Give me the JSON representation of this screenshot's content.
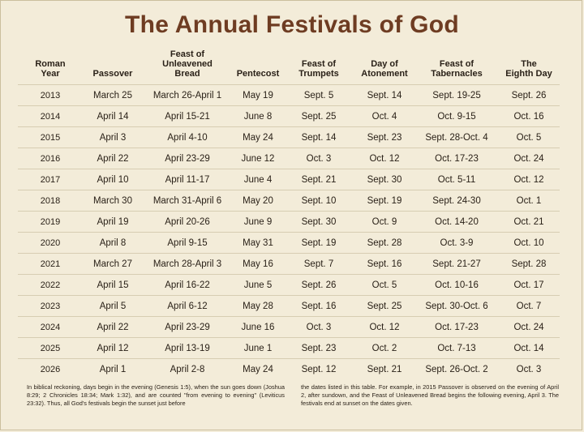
{
  "title": "The Annual Festivals of God",
  "columns": [
    "Roman\nYear",
    "Passover",
    "Feast of\nUnleavened\nBread",
    "Pentecost",
    "Feast of\nTrumpets",
    "Day of\nAtonement",
    "Feast of\nTabernacles",
    "The\nEighth Day"
  ],
  "rows": [
    [
      "2013",
      "March 25",
      "March 26-April 1",
      "May 19",
      "Sept. 5",
      "Sept. 14",
      "Sept. 19-25",
      "Sept. 26"
    ],
    [
      "2014",
      "April 14",
      "April 15-21",
      "June 8",
      "Sept. 25",
      "Oct. 4",
      "Oct. 9-15",
      "Oct. 16"
    ],
    [
      "2015",
      "April 3",
      "April 4-10",
      "May 24",
      "Sept. 14",
      "Sept. 23",
      "Sept. 28-Oct. 4",
      "Oct. 5"
    ],
    [
      "2016",
      "April 22",
      "April 23-29",
      "June 12",
      "Oct. 3",
      "Oct. 12",
      "Oct. 17-23",
      "Oct. 24"
    ],
    [
      "2017",
      "April 10",
      "April 11-17",
      "June 4",
      "Sept. 21",
      "Sept. 30",
      "Oct. 5-11",
      "Oct. 12"
    ],
    [
      "2018",
      "March 30",
      "March 31-April 6",
      "May 20",
      "Sept. 10",
      "Sept. 19",
      "Sept. 24-30",
      "Oct. 1"
    ],
    [
      "2019",
      "April 19",
      "April 20-26",
      "June 9",
      "Sept. 30",
      "Oct. 9",
      "Oct. 14-20",
      "Oct. 21"
    ],
    [
      "2020",
      "April 8",
      "April 9-15",
      "May 31",
      "Sept. 19",
      "Sept. 28",
      "Oct. 3-9",
      "Oct. 10"
    ],
    [
      "2021",
      "March 27",
      "March 28-April 3",
      "May 16",
      "Sept. 7",
      "Sept. 16",
      "Sept. 21-27",
      "Sept. 28"
    ],
    [
      "2022",
      "April 15",
      "April 16-22",
      "June 5",
      "Sept. 26",
      "Oct. 5",
      "Oct. 10-16",
      "Oct. 17"
    ],
    [
      "2023",
      "April 5",
      "April 6-12",
      "May 28",
      "Sept. 16",
      "Sept. 25",
      "Sept. 30-Oct. 6",
      "Oct. 7"
    ],
    [
      "2024",
      "April 22",
      "April 23-29",
      "June 16",
      "Oct. 3",
      "Oct. 12",
      "Oct. 17-23",
      "Oct. 24"
    ],
    [
      "2025",
      "April 12",
      "April 13-19",
      "June 1",
      "Sept. 23",
      "Oct. 2",
      "Oct. 7-13",
      "Oct. 14"
    ],
    [
      "2026",
      "April 1",
      "April 2-8",
      "May 24",
      "Sept. 12",
      "Sept. 21",
      "Sept. 26-Oct. 2",
      "Oct. 3"
    ]
  ],
  "footer": {
    "left": "In biblical reckoning, days begin in the evening (Genesis 1:5), when the sun goes down (Joshua 8:29; 2 Chronicles 18:34; Mark 1:32), and are counted \"from evening to evening\" (Leviticus 23:32). Thus, all God's festivals begin the sunset just before",
    "right": "the dates listed in this table. For example, in 2015 Passover is observed on the evening of April 2, after sundown, and the Feast of Unleavened Bread begins the following evening, April 3. The festivals end at sunset on the dates given."
  }
}
